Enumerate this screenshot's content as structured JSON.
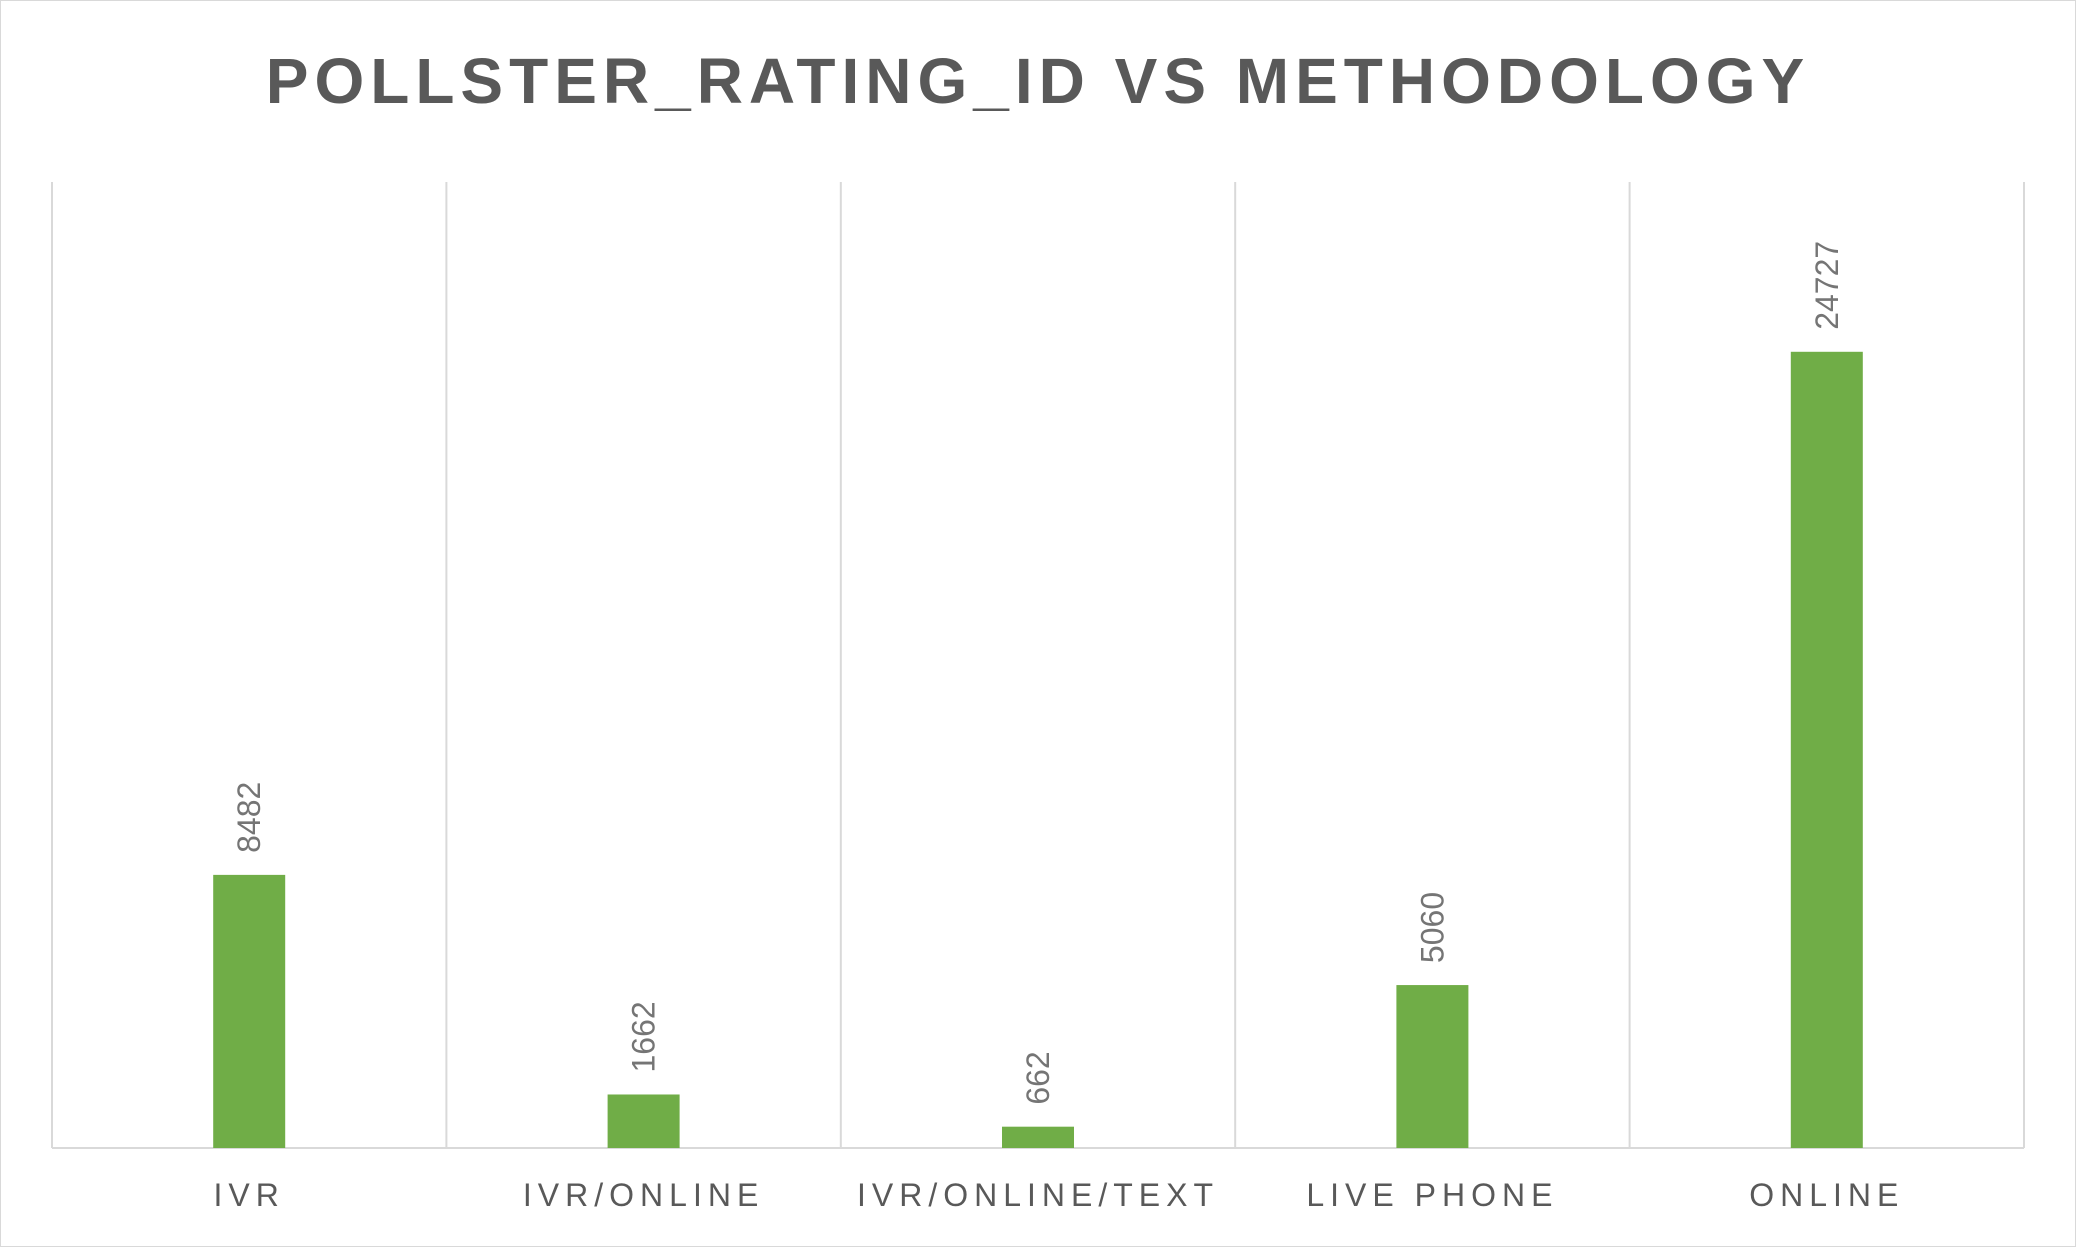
{
  "chart_data": {
    "type": "bar",
    "title": "POLLSTER_RATING_ID VS METHODOLOGY",
    "categories": [
      "IVR",
      "IVR/ONLINE",
      "IVR/ONLINE/TEXT",
      "LIVE PHONE",
      "ONLINE"
    ],
    "values": [
      8482,
      1662,
      662,
      5060,
      24727
    ],
    "xlabel": "",
    "ylabel": "",
    "ylim": [
      0,
      30000
    ],
    "grid": true,
    "legend": "none",
    "data_labels": "rotated-above-bar",
    "colors": {
      "bar": "#70ad47",
      "grid": "#d9d9d9",
      "title": "#595959",
      "label": "#757575"
    }
  }
}
